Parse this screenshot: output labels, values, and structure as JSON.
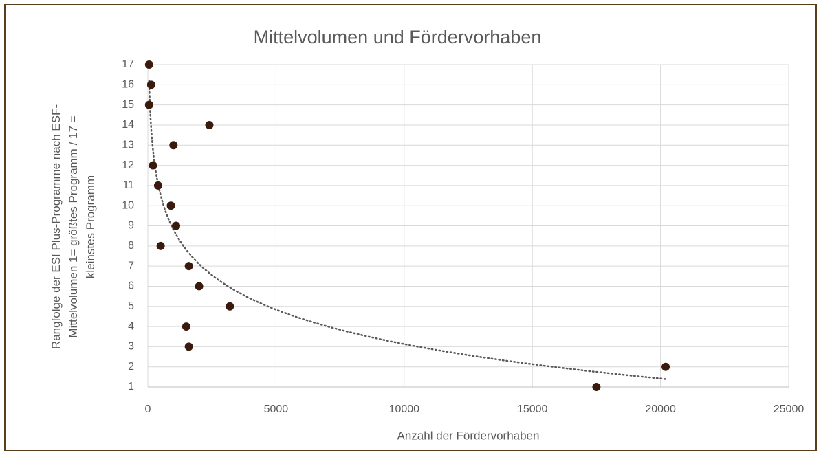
{
  "chart_data": {
    "type": "scatter",
    "title": "Mittelvolumen und Fördervorhaben",
    "xlabel": "Anzahl der Fördervorhaben",
    "ylabel": [
      "Rangfolge der ESf Plus-Programme nach ESF-",
      "Mittelvolumen  1= größtes Programm / 17 =",
      "kleinstes Programm"
    ],
    "x": [
      50,
      130,
      50,
      2400,
      1000,
      200,
      400,
      900,
      1100,
      500,
      1600,
      2000,
      3200,
      1500,
      1600,
      20200,
      17500
    ],
    "values": [
      17,
      16,
      15,
      14,
      13,
      12,
      11,
      10,
      9,
      8,
      7,
      6,
      5,
      4,
      3,
      2,
      1
    ],
    "color": "#3a1a0c",
    "trendline": "logarithmic",
    "xlim": [
      0,
      25000
    ],
    "xticks": [
      0,
      5000,
      10000,
      15000,
      20000,
      25000
    ],
    "ylim": [
      1,
      17
    ],
    "yticks": [
      1,
      2,
      3,
      4,
      5,
      6,
      7,
      8,
      9,
      10,
      11,
      12,
      13,
      14,
      15,
      16,
      17
    ],
    "grid": true
  }
}
